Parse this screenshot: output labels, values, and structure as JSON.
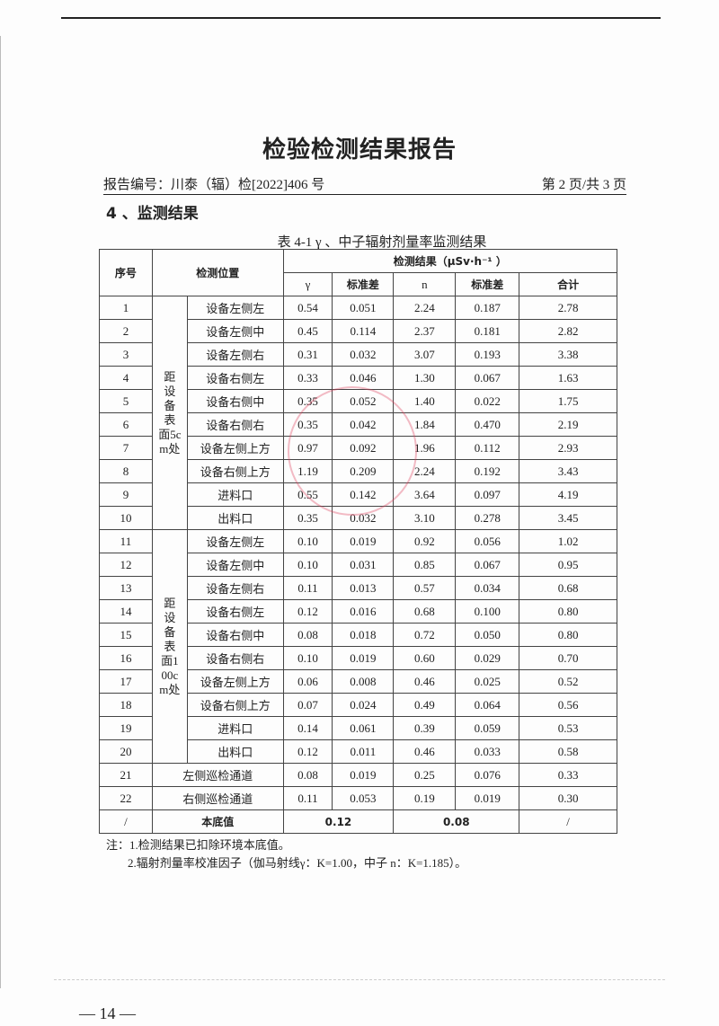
{
  "title": "检验检测结果报告",
  "report_no": "报告编号：川泰（辐）检[2022]406 号",
  "page_info": "第 2 页/共 3 页",
  "section": "4 、监测结果",
  "caption": "表 4-1 γ 、中子辐射剂量率监测结果",
  "table": {
    "col_seq": "序号",
    "col_pos": "检测位置",
    "col_result": "检测结果（μSv·h⁻¹ ）",
    "sub": [
      "γ",
      "标准差",
      "n",
      "标准差",
      "合计"
    ],
    "group1": "距设备表面5cm处",
    "group2": "距设备表面100cm处",
    "rows": [
      [
        "1",
        "设备左侧左",
        "0.54",
        "0.051",
        "2.24",
        "0.187",
        "2.78"
      ],
      [
        "2",
        "设备左侧中",
        "0.45",
        "0.114",
        "2.37",
        "0.181",
        "2.82"
      ],
      [
        "3",
        "设备左侧右",
        "0.31",
        "0.032",
        "3.07",
        "0.193",
        "3.38"
      ],
      [
        "4",
        "设备右侧左",
        "0.33",
        "0.046",
        "1.30",
        "0.067",
        "1.63"
      ],
      [
        "5",
        "设备右侧中",
        "0.35",
        "0.052",
        "1.40",
        "0.022",
        "1.75"
      ],
      [
        "6",
        "设备右侧右",
        "0.35",
        "0.042",
        "1.84",
        "0.470",
        "2.19"
      ],
      [
        "7",
        "设备左侧上方",
        "0.97",
        "0.092",
        "1.96",
        "0.112",
        "2.93"
      ],
      [
        "8",
        "设备右侧上方",
        "1.19",
        "0.209",
        "2.24",
        "0.192",
        "3.43"
      ],
      [
        "9",
        "进料口",
        "0.55",
        "0.142",
        "3.64",
        "0.097",
        "4.19"
      ],
      [
        "10",
        "出料口",
        "0.35",
        "0.032",
        "3.10",
        "0.278",
        "3.45"
      ],
      [
        "11",
        "设备左侧左",
        "0.10",
        "0.019",
        "0.92",
        "0.056",
        "1.02"
      ],
      [
        "12",
        "设备左侧中",
        "0.10",
        "0.031",
        "0.85",
        "0.067",
        "0.95"
      ],
      [
        "13",
        "设备左侧右",
        "0.11",
        "0.013",
        "0.57",
        "0.034",
        "0.68"
      ],
      [
        "14",
        "设备右侧左",
        "0.12",
        "0.016",
        "0.68",
        "0.100",
        "0.80"
      ],
      [
        "15",
        "设备右侧中",
        "0.08",
        "0.018",
        "0.72",
        "0.050",
        "0.80"
      ],
      [
        "16",
        "设备右侧右",
        "0.10",
        "0.019",
        "0.60",
        "0.029",
        "0.70"
      ],
      [
        "17",
        "设备左侧上方",
        "0.06",
        "0.008",
        "0.46",
        "0.025",
        "0.52"
      ],
      [
        "18",
        "设备右侧上方",
        "0.07",
        "0.024",
        "0.49",
        "0.064",
        "0.56"
      ],
      [
        "19",
        "进料口",
        "0.14",
        "0.061",
        "0.39",
        "0.059",
        "0.53"
      ],
      [
        "20",
        "出料口",
        "0.12",
        "0.011",
        "0.46",
        "0.033",
        "0.58"
      ],
      [
        "21",
        "左侧巡检通道",
        "0.08",
        "0.019",
        "0.25",
        "0.076",
        "0.33"
      ],
      [
        "22",
        "右侧巡检通道",
        "0.11",
        "0.053",
        "0.19",
        "0.019",
        "0.30"
      ]
    ],
    "background": {
      "seq": "/",
      "label": "本底值",
      "gamma": "0.12",
      "n": "0.08",
      "total": "/"
    }
  },
  "notes": [
    "注：1.检测结果已扣除环境本底值。",
    "2.辐射剂量率校准因子（伽马射线γ：K=1.00，中子 n：K=1.185）。"
  ],
  "footer": "— 14 —"
}
